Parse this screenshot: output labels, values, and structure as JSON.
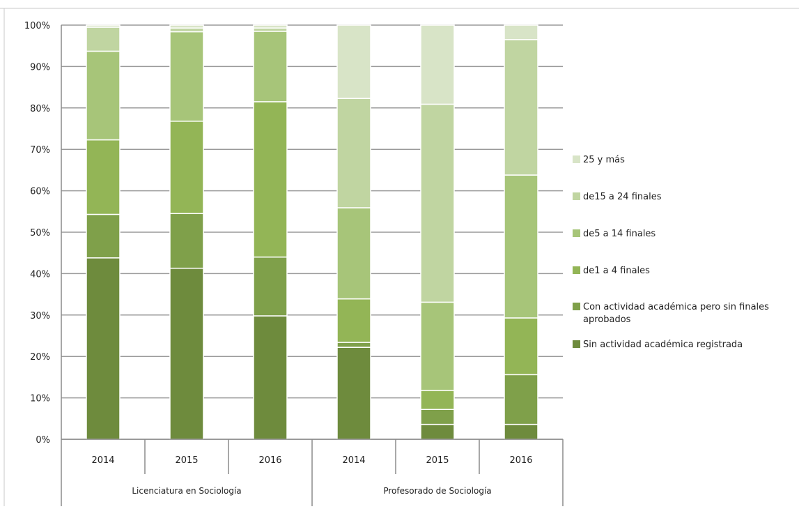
{
  "chart_data": {
    "type": "bar",
    "stacked": "percent",
    "groups": [
      {
        "label": "Licenciatura en Sociología",
        "categories": [
          "2014",
          "2015",
          "2016"
        ]
      },
      {
        "label": "Profesorado de Sociología",
        "categories": [
          "2014",
          "2015",
          "2016"
        ]
      }
    ],
    "series": [
      {
        "name": "Sin actividad académica registrada",
        "color": "#6E8B3D",
        "values": [
          43.8,
          41.3,
          29.8,
          22.2,
          3.6,
          3.6
        ]
      },
      {
        "name": "Con actividad académica pero sin finales aprobados",
        "color": "#7FA04A",
        "values": [
          10.5,
          13.2,
          14.2,
          1.2,
          3.6,
          12.0
        ]
      },
      {
        "name": "de1 a 4 finales",
        "color": "#93B556",
        "values": [
          18.0,
          22.3,
          37.5,
          10.5,
          4.6,
          13.7
        ]
      },
      {
        "name": "de5 a 14 finales",
        "color": "#A7C579",
        "values": [
          21.4,
          21.6,
          17.0,
          22.0,
          21.3,
          34.5
        ]
      },
      {
        "name": "de15 a 24 finales",
        "color": "#C0D5A1",
        "values": [
          5.8,
          0.9,
          0.8,
          26.4,
          47.8,
          32.7
        ]
      },
      {
        "name": "25 y más",
        "color": "#D8E4C7",
        "values": [
          0.5,
          0.7,
          0.7,
          17.7,
          19.1,
          3.5
        ]
      }
    ],
    "ylim": [
      0,
      100
    ],
    "yticks": [
      "0%",
      "10%",
      "20%",
      "30%",
      "40%",
      "50%",
      "60%",
      "70%",
      "80%",
      "90%",
      "100%"
    ],
    "grid": true,
    "legend_position": "right"
  }
}
